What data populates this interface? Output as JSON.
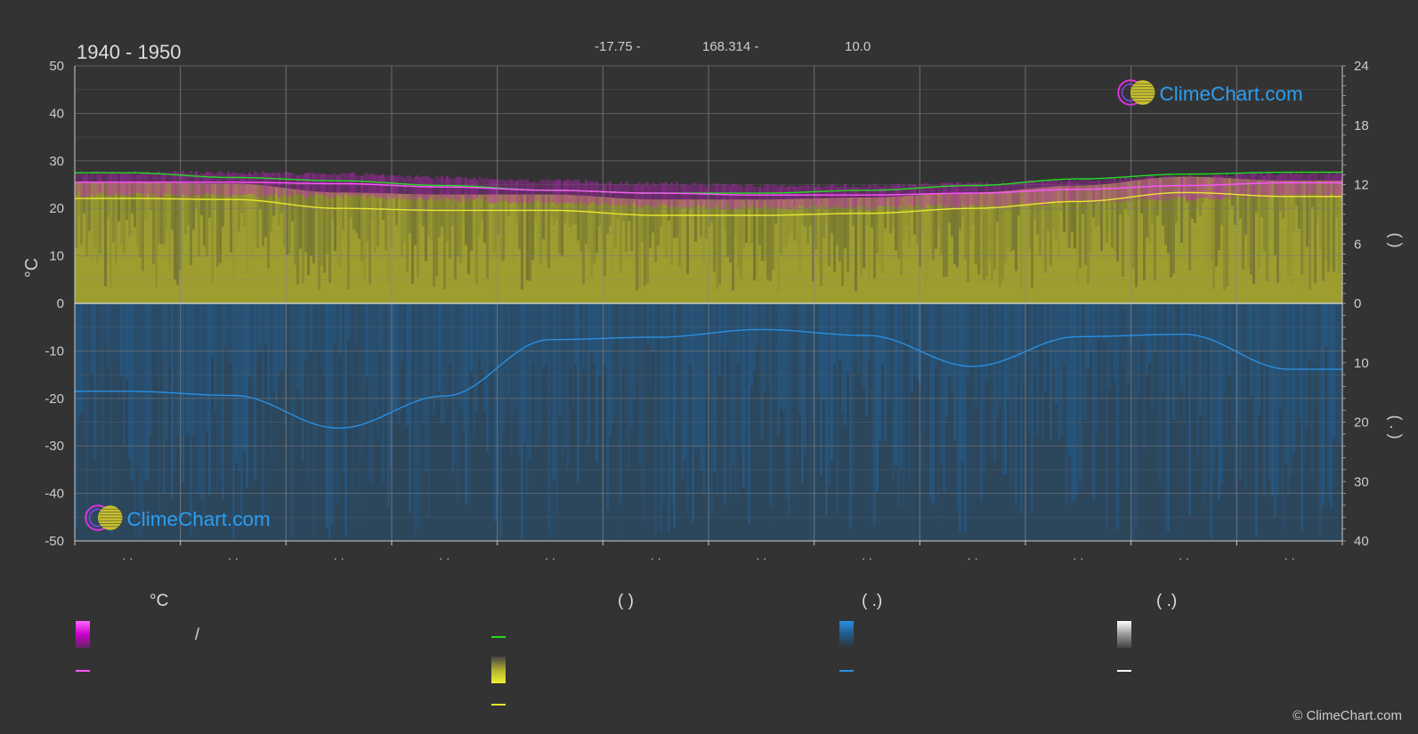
{
  "header": {
    "period": "1940 - 1950",
    "lat": "-17.75 -",
    "lon": "168.314 -",
    "elev": "10.0"
  },
  "logo": {
    "text": "ClimeChart.com"
  },
  "copyright": "© ClimeChart.com",
  "colors": {
    "background": "#333333",
    "sunshine": "#b0b030",
    "precip": "#1f6aa8",
    "max_temp": "#22dd22",
    "daily_mean": "#ff55ff",
    "sunshine_line": "#e8e830",
    "precip_line": "#2a8fe0",
    "grid": "#777777"
  },
  "legend": {
    "head_temp": "°C",
    "head_sun": "(          )",
    "head_rain": "(   .)",
    "head_snow": "(   .)",
    "slash_label": "/"
  },
  "chart_data": {
    "type": "line",
    "months": 12,
    "left_axis": {
      "label": "°C",
      "ylim": [
        -50,
        50
      ],
      "ticks": [
        50,
        40,
        30,
        20,
        10,
        0,
        -10,
        -20,
        -30,
        -40,
        -50
      ]
    },
    "right_axis_top": {
      "label": "(   )",
      "ylim": [
        0,
        24
      ],
      "ticks": [
        24,
        18,
        12,
        6,
        0
      ]
    },
    "right_axis_bottom": {
      "label": "(  .  )",
      "ylim": [
        0,
        40
      ],
      "ticks": [
        10,
        20,
        30,
        40
      ]
    },
    "x_tick_labels": [
      "· ·",
      "· ·",
      "· ·",
      "· ·",
      "· ·",
      "· ·",
      "· ·",
      "· ·",
      "· ·",
      "· ·",
      "· ·",
      "· ·"
    ],
    "series": [
      {
        "key": "max_temp",
        "values": [
          27.5,
          26.5,
          25.8,
          24.8,
          23.8,
          23.2,
          23.2,
          23.8,
          24.8,
          26.2,
          27.2,
          27.6
        ]
      },
      {
        "key": "daily_mean",
        "values": [
          25.5,
          25.5,
          25.2,
          24.5,
          23.8,
          23.2,
          22.8,
          22.8,
          23.2,
          24.0,
          24.8,
          25.4
        ]
      },
      {
        "key": "sunshine_hours",
        "values": [
          10.6,
          10.5,
          9.6,
          9.4,
          9.4,
          8.9,
          8.9,
          9.1,
          9.6,
          10.3,
          11.2,
          10.8
        ]
      },
      {
        "key": "precip_mm",
        "values": [
          14.8,
          15.5,
          21.0,
          15.6,
          6.1,
          5.7,
          4.4,
          5.4,
          10.6,
          5.6,
          5.2,
          11.1
        ]
      }
    ]
  }
}
